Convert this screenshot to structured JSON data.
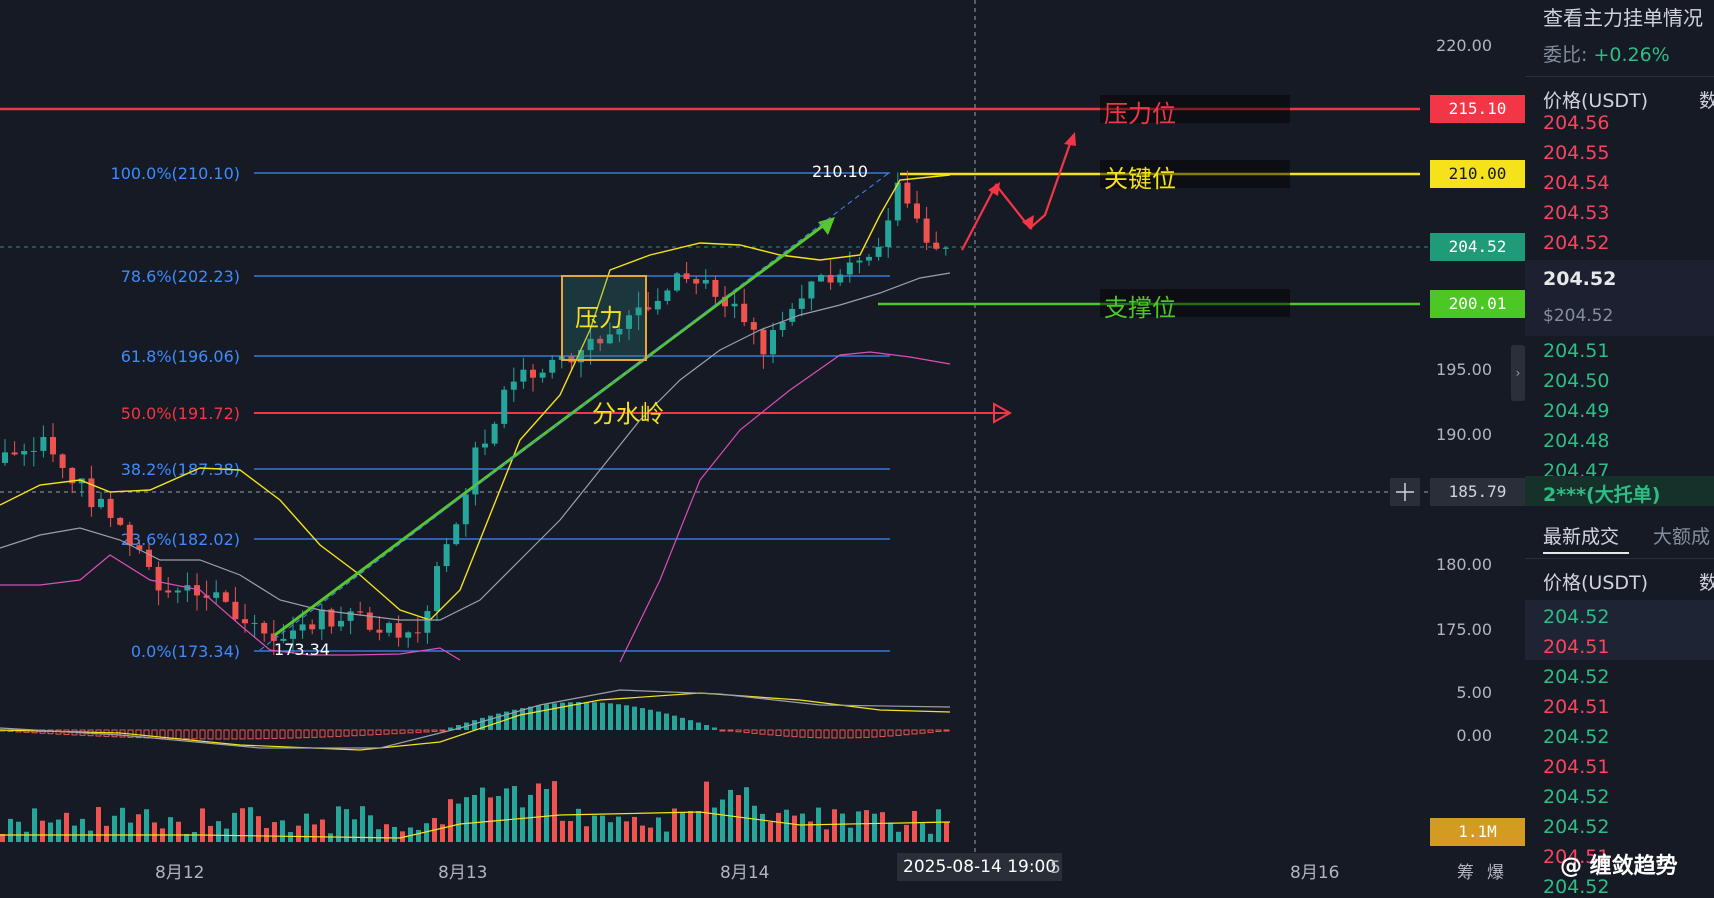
{
  "price_axis": {
    "ticks": [
      "220.00",
      "195.00",
      "190.00",
      "180.00",
      "175.00",
      "5.00",
      "0.00"
    ],
    "labels": [
      {
        "text": "215.10",
        "bg": "#f23645",
        "fg": "#ffffff"
      },
      {
        "text": "210.00",
        "bg": "#f5e21a",
        "fg": "#161a25"
      },
      {
        "text": "204.52",
        "bg": "#1f9b7a",
        "fg": "#ffffff"
      },
      {
        "text": "200.01",
        "bg": "#4cc726",
        "fg": "#ffffff"
      },
      {
        "text": "185.79",
        "bg": "#2a2e39",
        "fg": "#d1d4dc"
      },
      {
        "text": "1.1M",
        "bg": "#d39b22",
        "fg": "#ffffff"
      }
    ]
  },
  "time_axis": {
    "labels": [
      "8月12",
      "8月13",
      "8月14",
      "8月16"
    ],
    "crosshair_time": "2025-08-14 19:00",
    "partial": "5",
    "corner": [
      "筹",
      "爆"
    ]
  },
  "fib": [
    {
      "label": "100.0%(210.10)",
      "color": "#3d8bfd"
    },
    {
      "label": "78.6%(202.23)",
      "color": "#3d8bfd"
    },
    {
      "label": "61.8%(196.06)",
      "color": "#3d8bfd"
    },
    {
      "label": "50.0%(191.72)",
      "color": "#f23645"
    },
    {
      "label": "38.2%(187.38)",
      "color": "#3d8bfd"
    },
    {
      "label": "23.6%(182.02)",
      "color": "#3d8bfd"
    },
    {
      "label": "0.0%(173.34)",
      "color": "#3d8bfd"
    }
  ],
  "annotations": {
    "pressure_level": "压力位",
    "key_level": "关键位",
    "support_level": "支撑位",
    "pressure_box": "压力",
    "watershed": "分水岭",
    "high_label": "210.10",
    "low_label": "173.34"
  },
  "side": {
    "title": "查看主力挂单情况",
    "ratio_label": "委比:",
    "ratio_value": "+0.26%",
    "col_price": "价格(USDT)",
    "col_qty": "数",
    "asks": [
      "204.56",
      "204.55",
      "204.54",
      "204.53",
      "204.52"
    ],
    "last_price": "204.52",
    "last_price_usd": "$204.52",
    "bids": [
      "204.51",
      "204.50",
      "204.49",
      "204.48",
      "204.47"
    ],
    "big_bid": "2***(大托单)",
    "tabs": [
      "最新成交",
      "大额成"
    ],
    "trades": [
      {
        "p": "204.52",
        "side": "buy"
      },
      {
        "p": "204.51",
        "side": "sell"
      },
      {
        "p": "204.52",
        "side": "buy"
      },
      {
        "p": "204.51",
        "side": "sell"
      },
      {
        "p": "204.52",
        "side": "buy"
      },
      {
        "p": "204.51",
        "side": "sell"
      },
      {
        "p": "204.52",
        "side": "buy"
      },
      {
        "p": "204.52",
        "side": "buy"
      },
      {
        "p": "204.51",
        "side": "sell"
      },
      {
        "p": "204.52",
        "side": "buy"
      }
    ]
  },
  "watermark": "@ 缠敛趋势",
  "colors": {
    "up": "#26a69a",
    "down": "#ef5350",
    "bg": "#161a25"
  }
}
